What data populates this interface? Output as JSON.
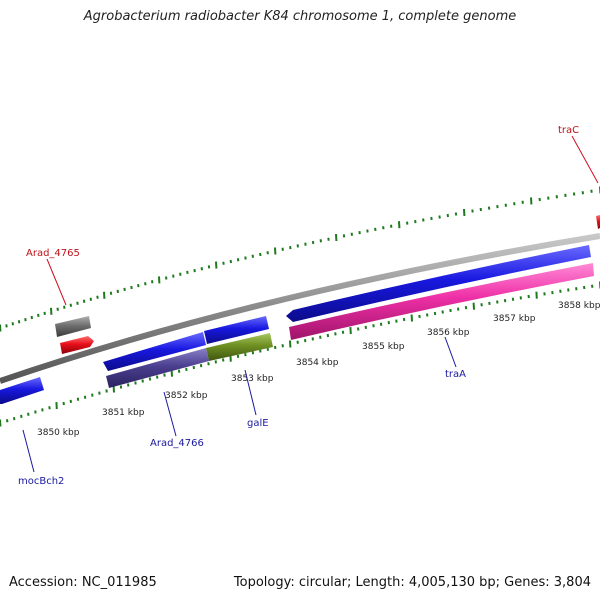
{
  "title": "Agrobacterium radiobacter K84 chromosome 1, complete genome",
  "footer": {
    "accession": "Accession: NC_011985",
    "summary": "Topology: circular; Length: 4,005,130 bp; Genes: 3,804"
  },
  "scale": {
    "unit": "kbp",
    "labels": [
      "3850 kbp",
      "3851 kbp",
      "3852 kbp",
      "3853 kbp",
      "3854 kbp",
      "3855 kbp",
      "3856 kbp",
      "3857 kbp",
      "3858 kbp"
    ]
  },
  "genes": [
    {
      "name": "traC",
      "strand": "forward",
      "color": "#e8101a"
    },
    {
      "name": "Arad_4765",
      "strand": "forward",
      "color": "#e8101a"
    },
    {
      "name": "mocBch2",
      "strand": "reverse",
      "color": "#1a1ae0"
    },
    {
      "name": "Arad_4766",
      "strand": "reverse",
      "color": "#1a1ae0"
    },
    {
      "name": "galE",
      "strand": "reverse",
      "color": "#1a1ae0"
    },
    {
      "name": "traA",
      "strand": "reverse",
      "color": "#1a1ae0"
    }
  ],
  "colors": {
    "genome_line": "#8a8a8a",
    "cds_forward": "#e8101a",
    "cds_reverse": "#1a1ae0",
    "rna_gray": "#6f6f6f",
    "pink_feature": "#ee2fa6",
    "purple_feature": "#4b3f8f",
    "green_feature": "#6e8f22",
    "tick_color": "#1f7a1f",
    "forward_label": "#c0101a",
    "reverse_label": "#1a1aa0"
  }
}
